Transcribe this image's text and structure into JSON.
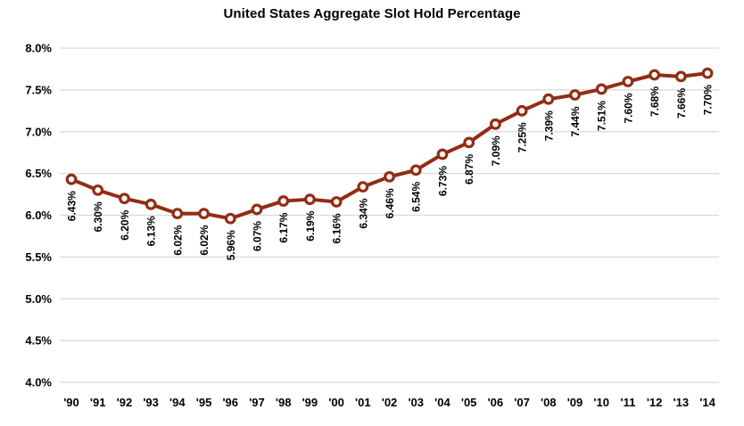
{
  "chart_data": {
    "type": "line",
    "title": "United States Aggregate Slot Hold Percentage",
    "xlabel": "",
    "ylabel": "",
    "categories": [
      "'90",
      "'91",
      "'92",
      "'93",
      "'94",
      "'95",
      "'96",
      "'97",
      "'98",
      "'99",
      "'00",
      "'01",
      "'02",
      "'03",
      "'04",
      "'05",
      "'06",
      "'07",
      "'08",
      "'09",
      "'10",
      "'11",
      "'12",
      "'13",
      "'14"
    ],
    "series": [
      {
        "name": "US Aggregate Slot Hold %",
        "values": [
          6.43,
          6.3,
          6.2,
          6.13,
          6.02,
          6.02,
          5.96,
          6.07,
          6.17,
          6.19,
          6.16,
          6.34,
          6.46,
          6.54,
          6.73,
          6.87,
          7.09,
          7.25,
          7.39,
          7.44,
          7.51,
          7.6,
          7.68,
          7.66,
          7.7
        ],
        "point_labels": [
          "6.43%",
          "6.30%",
          "6.20%",
          "6.13%",
          "6.02%",
          "6.02%",
          "5.96%",
          "6.07%",
          "6.17%",
          "6.19%",
          "6.16%",
          "6.34%",
          "6.46%",
          "6.54%",
          "6.73%",
          "6.87%",
          "7.09%",
          "7.25%",
          "7.39%",
          "7.44%",
          "7.51%",
          "7.60%",
          "7.68%",
          "7.66%",
          "7.70%"
        ],
        "color": "#922D14",
        "marker": "open-circle",
        "marker_fill": "#ffffff"
      }
    ],
    "ylim": [
      4.0,
      8.0
    ],
    "ytick_values": [
      8.0,
      7.5,
      7.0,
      6.5,
      6.0,
      5.5,
      5.0,
      4.5,
      4.0
    ],
    "ytick_labels": [
      "8.0%",
      "7.5%",
      "7.0%",
      "6.5%",
      "6.0%",
      "5.5%",
      "5.0%",
      "4.5%",
      "4.0%"
    ],
    "grid": true,
    "grid_color": "#D9D9D9",
    "legend_position": "none",
    "data_label_rotation": -90
  }
}
